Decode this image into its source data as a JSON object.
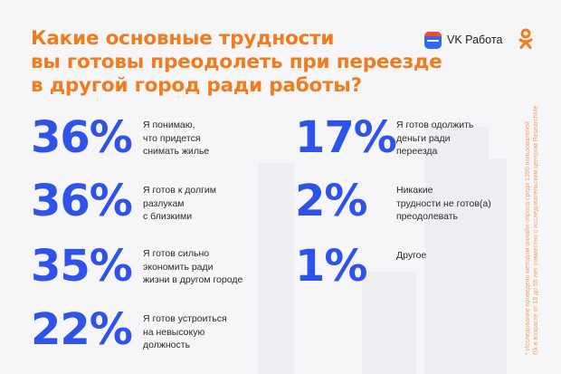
{
  "title_lines": [
    "Какие основные трудности",
    "вы готовы преодолеть при переезде",
    "в другой город ради работы?"
  ],
  "brand": {
    "name": "VK Работа",
    "icon": "vk-rabota-bag-icon",
    "partner_icon": "odnoklassniki-icon"
  },
  "colors": {
    "accent": "#f07c1e",
    "percent": "#2f53e8",
    "background": "#f6f6f8"
  },
  "items": [
    {
      "percent": "36%",
      "lines": [
        "Я понимаю,",
        "что придется",
        "снимать жилье"
      ]
    },
    {
      "percent": "36%",
      "lines": [
        "Я готов к долгим",
        "разлукам",
        "с близкими"
      ]
    },
    {
      "percent": "35%",
      "lines": [
        "Я готов сильно",
        "экономить ради",
        "жизни в другом городе"
      ]
    },
    {
      "percent": "22%",
      "lines": [
        "Я готов устроиться",
        "на невысокую",
        "должность"
      ]
    },
    {
      "percent": "17%",
      "lines": [
        "Я готов одолжить",
        "деньги ради",
        "переезда"
      ]
    },
    {
      "percent": "2%",
      "lines": [
        "Никакие",
        "трудности не готов(а)",
        "преодолевать"
      ]
    },
    {
      "percent": "1%",
      "lines": [
        "Другое"
      ]
    }
  ],
  "footnote_lines": [
    "* Исследование проведено методом онлайн-опроса среди 1390 пользователей",
    "Ok в возрасте от 18 до 55 лет совместно с исследовательским центром ResearchMe"
  ]
}
